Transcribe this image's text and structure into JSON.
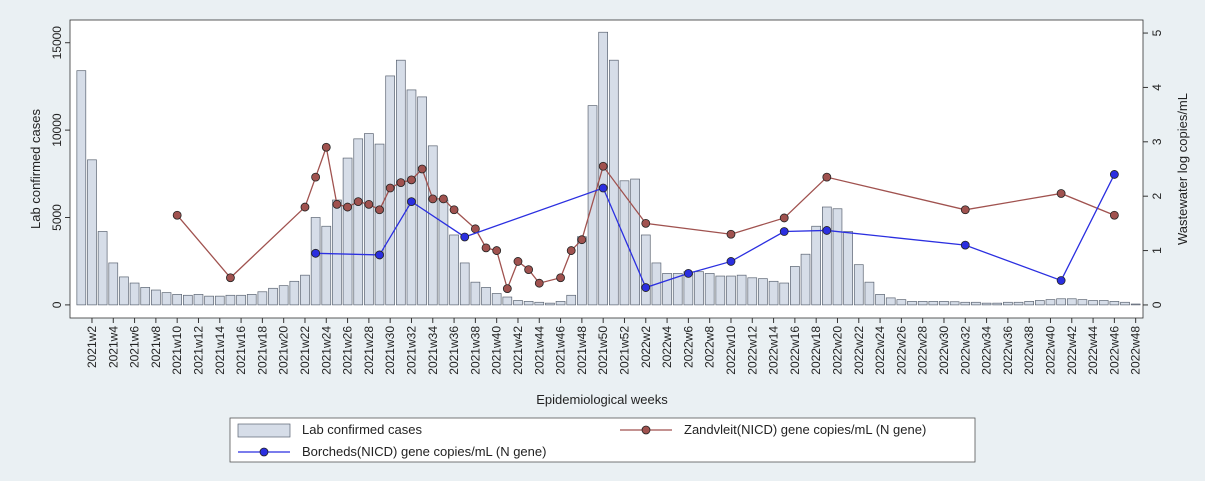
{
  "chart_data": {
    "type": "bar-line",
    "x_label": "Epidemiological weeks",
    "y_label": "Lab confirmed cases",
    "y2_label": "Wastewater log copies/mL",
    "categories": [
      null,
      "2021w2",
      null,
      "2021w4",
      null,
      "2021w6",
      null,
      "2021w8",
      null,
      "2021w10",
      null,
      "2021w12",
      null,
      "2021w14",
      null,
      "2021w16",
      null,
      "2021w18",
      null,
      "2021w20",
      null,
      "2021w22",
      null,
      "2021w24",
      null,
      "2021w26",
      null,
      "2021w28",
      null,
      "2021w30",
      null,
      "2021w32",
      null,
      "2021w34",
      null,
      "2021w36",
      null,
      "2021w38",
      null,
      "2021w40",
      null,
      "2021w42",
      null,
      "2021w44",
      null,
      "2021w46",
      null,
      "2021w48",
      null,
      "2021w50",
      null,
      "2021w52",
      null,
      "2022w2",
      null,
      "2022w4",
      null,
      "2022w6",
      null,
      "2022w8",
      null,
      "2022w10",
      null,
      "2022w12",
      null,
      "2022w14",
      null,
      "2022w16",
      null,
      "2022w18",
      null,
      "2022w20",
      null,
      "2022w22",
      null,
      "2022w24",
      null,
      "2022w26",
      null,
      "2022w28",
      null,
      "2022w30",
      null,
      "2022w32",
      null,
      "2022w34",
      null,
      "2022w36",
      null,
      "2022w38",
      null,
      "2022w40",
      null,
      "2022w42",
      null,
      "2022w44",
      null,
      "2022w46",
      null,
      "2022w48"
    ],
    "series": [
      {
        "name": "Lab confirmed cases",
        "kind": "bar",
        "color": "#d6dde8",
        "values": [
          13400,
          8300,
          4200,
          2400,
          1600,
          1250,
          1000,
          850,
          700,
          600,
          550,
          600,
          500,
          500,
          550,
          550,
          600,
          750,
          950,
          1100,
          1350,
          1700,
          5000,
          4500,
          6000,
          8400,
          9500,
          9800,
          9200,
          13100,
          14000,
          12300,
          11900,
          9100,
          6000,
          4000,
          2400,
          1300,
          1000,
          650,
          450,
          250,
          200,
          150,
          100,
          200,
          550,
          3900,
          11400,
          15600,
          14000,
          7100,
          7200,
          4000,
          2400,
          1800,
          1800,
          1900,
          1900,
          1800,
          1650,
          1650,
          1700,
          1550,
          1500,
          1350,
          1250,
          2200,
          2900,
          4500,
          5600,
          5500,
          4200,
          2300,
          1300,
          600,
          400,
          300,
          200,
          200,
          200,
          200,
          180,
          150,
          150,
          100,
          100,
          150,
          150,
          200,
          250,
          300,
          350,
          350,
          300,
          250,
          250,
          200,
          150,
          50
        ]
      },
      {
        "name": "Zandvleit(NICD) gene copies/mL (N gene)",
        "kind": "line",
        "axis": "y2",
        "color": "#a0524f",
        "values": [
          null,
          null,
          null,
          null,
          null,
          null,
          null,
          null,
          null,
          1.65,
          null,
          null,
          null,
          null,
          0.5,
          null,
          null,
          null,
          null,
          null,
          null,
          1.8,
          2.35,
          2.9,
          1.85,
          1.8,
          1.9,
          1.85,
          1.75,
          2.15,
          2.25,
          2.3,
          2.5,
          1.95,
          1.95,
          1.75,
          null,
          1.4,
          1.05,
          1.0,
          0.3,
          0.8,
          0.65,
          0.4,
          null,
          0.5,
          1.0,
          1.2,
          null,
          2.55,
          null,
          null,
          null,
          1.5,
          null,
          null,
          null,
          null,
          null,
          null,
          null,
          1.3,
          null,
          null,
          null,
          null,
          1.6,
          null,
          null,
          null,
          2.35,
          null,
          null,
          null,
          null,
          null,
          null,
          null,
          null,
          null,
          null,
          null,
          null,
          1.75,
          null,
          null,
          null,
          null,
          null,
          null,
          null,
          null,
          2.05,
          null,
          null,
          null,
          null,
          1.65,
          null,
          null
        ]
      },
      {
        "name": "Borcheds(NICD) gene copies/mL (N gene)",
        "kind": "line",
        "axis": "y2",
        "color": "#2b2fe0",
        "values": [
          null,
          null,
          null,
          null,
          null,
          null,
          null,
          null,
          null,
          null,
          null,
          null,
          null,
          null,
          null,
          null,
          null,
          null,
          null,
          null,
          null,
          null,
          0.95,
          null,
          null,
          null,
          null,
          null,
          0.92,
          null,
          null,
          1.9,
          null,
          null,
          null,
          null,
          1.25,
          null,
          null,
          null,
          null,
          null,
          null,
          null,
          null,
          null,
          null,
          null,
          null,
          2.15,
          null,
          null,
          null,
          0.32,
          null,
          null,
          null,
          0.58,
          null,
          null,
          null,
          0.8,
          null,
          null,
          null,
          null,
          1.35,
          null,
          null,
          null,
          1.37,
          null,
          null,
          null,
          null,
          null,
          null,
          null,
          null,
          null,
          null,
          null,
          null,
          1.1,
          null,
          null,
          null,
          null,
          null,
          null,
          null,
          null,
          0.45,
          null,
          null,
          null,
          null,
          2.4,
          null,
          null
        ]
      }
    ],
    "ylim": [
      -750,
      16300
    ],
    "yticks": [
      0,
      5000,
      10000,
      15000
    ],
    "y2lim": [
      -0.24,
      5.24
    ],
    "y2ticks": [
      0,
      1,
      2,
      3,
      4,
      5
    ]
  }
}
